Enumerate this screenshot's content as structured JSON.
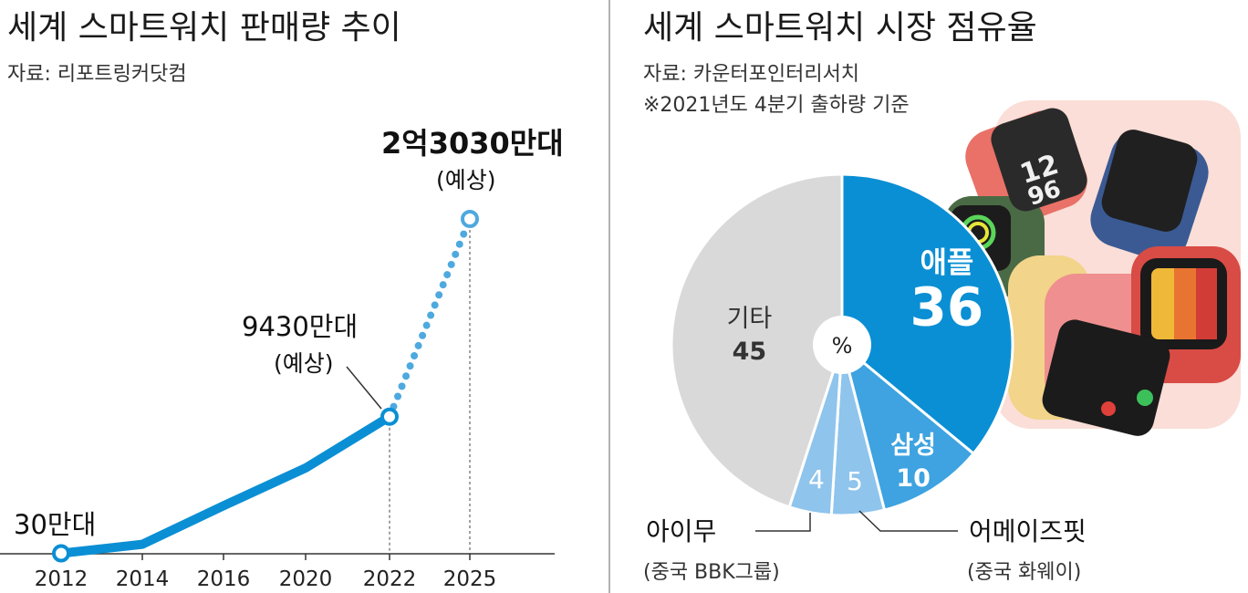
{
  "left": {
    "title": "세계 스마트워치 판매량 추이",
    "source": "자료: 리포트링커닷컴",
    "annotations": {
      "start": "30만대",
      "mid_value": "9430만대",
      "mid_note": "(예상)",
      "end_value": "2억3030만대",
      "end_note": "(예상)"
    }
  },
  "right": {
    "title": "세계 스마트워치 시장 점유율",
    "source": "자료: 카운터포인터리서치",
    "note": "※2021년도 4분기 출하량 기준",
    "center_label": "%",
    "callout_left": {
      "name": "아이무",
      "sub": "(중국 BBK그룹)"
    },
    "callout_right": {
      "name": "어메이즈핏",
      "sub": "(중국 화웨이)"
    }
  },
  "colors": {
    "line": "#0a8fd4",
    "projection": "#4ea9df",
    "apple": "#0a8fd4",
    "samsung": "#3ea3e0",
    "small": "#8fc4ec",
    "other": "#d9d9d9"
  },
  "chart_data": [
    {
      "type": "line",
      "categories": [
        "2012",
        "2014",
        "2016",
        "2020",
        "2022",
        "2025"
      ],
      "series": [
        {
          "values": [
            30,
            650,
            3300,
            5900,
            9430,
            23030
          ],
          "projected_from_index": 4
        }
      ],
      "unit": "만대",
      "ylim": [
        0,
        23030
      ],
      "grid": false
    },
    {
      "type": "pie",
      "unit": "%",
      "slices": [
        {
          "label": "애플",
          "value": 36
        },
        {
          "label": "삼성",
          "value": 10
        },
        {
          "label": "어메이즈핏",
          "value": 5
        },
        {
          "label": "아이무",
          "value": 4
        },
        {
          "label": "기타",
          "value": 45
        }
      ]
    }
  ]
}
